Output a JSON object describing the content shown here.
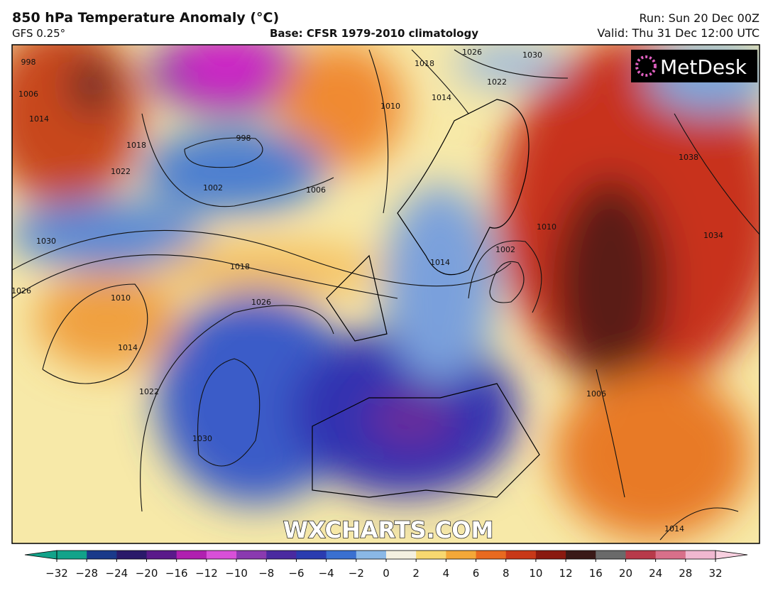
{
  "header": {
    "title": "850 hPa Temperature Anomaly (°C)",
    "model": "GFS 0.25°",
    "base": "Base: CFSR 1979-2010 climatology",
    "run": "Run: Sun 20 Dec 00Z",
    "valid": "Valid: Thu 31 Dec 12:00 UTC"
  },
  "logo": "MetDesk",
  "watermark": "WXCHARTS.COM",
  "isobar_labels": [
    998,
    1006,
    1014,
    1018,
    1022,
    1030,
    1026,
    1010,
    1014,
    1022,
    1030,
    1026,
    1018,
    998,
    1002,
    1006,
    1010,
    1014,
    1018,
    1026,
    1022,
    1030,
    1038,
    1034,
    1014,
    1002,
    1010,
    1006,
    1014
  ],
  "colorbar": {
    "ticks": [
      {
        "value": -32,
        "label": "−32"
      },
      {
        "value": -28,
        "label": "−28"
      },
      {
        "value": -24,
        "label": "−24"
      },
      {
        "value": -20,
        "label": "−20"
      },
      {
        "value": -16,
        "label": "−16"
      },
      {
        "value": -12,
        "label": "−12"
      },
      {
        "value": -10,
        "label": "−10"
      },
      {
        "value": -8,
        "label": "−8"
      },
      {
        "value": -6,
        "label": "−6"
      },
      {
        "value": -4,
        "label": "−4"
      },
      {
        "value": -2,
        "label": "−2"
      },
      0,
      2,
      4,
      6,
      8,
      10,
      12,
      16,
      20,
      24,
      28,
      32
    ]
  }
}
